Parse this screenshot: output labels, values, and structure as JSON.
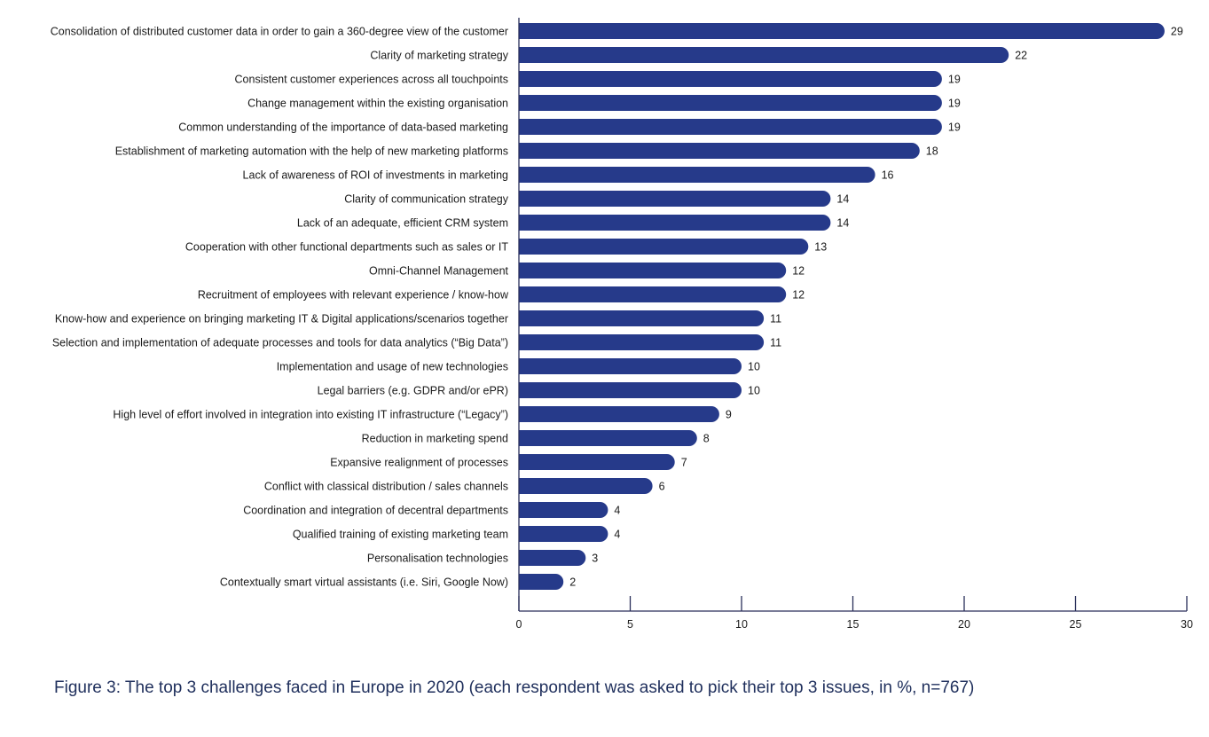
{
  "chart_data": {
    "type": "bar",
    "orientation": "horizontal",
    "title": "Figure 3: The top 3 challenges faced in Europe in 2020 (each respondent was asked to pick their top 3 issues, in %, n=767)",
    "xlabel": "",
    "ylabel": "",
    "xlim": [
      0,
      30
    ],
    "xticks": [
      0,
      5,
      10,
      15,
      20,
      25,
      30
    ],
    "grid": false,
    "bar_color": "#263a8a",
    "categories": [
      "Consolidation of distributed customer data in order to gain a 360-degree view of the customer",
      "Clarity of marketing strategy",
      "Consistent customer experiences across all touchpoints",
      "Change management within the existing organisation",
      "Common understanding of the importance of data-based marketing",
      "Establishment of marketing automation with the help of new marketing platforms",
      "Lack of awareness of ROI of investments in marketing",
      "Clarity of communication strategy",
      "Lack of an adequate, efficient CRM system",
      "Cooperation with other functional departments such as sales or IT",
      "Omni-Channel Management",
      "Recruitment of employees with relevant experience / know-how",
      "Know-how and experience on bringing marketing IT & Digital applications/scenarios together",
      "Selection and implementation of adequate processes and tools for data analytics (“Big Data”)",
      "Implementation and usage of new technologies",
      "Legal barriers (e.g. GDPR and/or ePR)",
      "High level of effort involved in integration into existing IT infrastructure (“Legacy”)",
      "Reduction in marketing spend",
      "Expansive realignment of processes",
      "Conflict with classical distribution / sales channels",
      "Coordination and integration of decentral departments",
      "Qualified training of existing marketing team",
      "Personalisation technologies",
      "Contextually smart virtual assistants (i.e. Siri, Google Now)"
    ],
    "values": [
      29,
      22,
      19,
      19,
      19,
      18,
      16,
      14,
      14,
      13,
      12,
      12,
      11,
      11,
      10,
      10,
      9,
      8,
      7,
      6,
      4,
      4,
      3,
      2
    ]
  }
}
